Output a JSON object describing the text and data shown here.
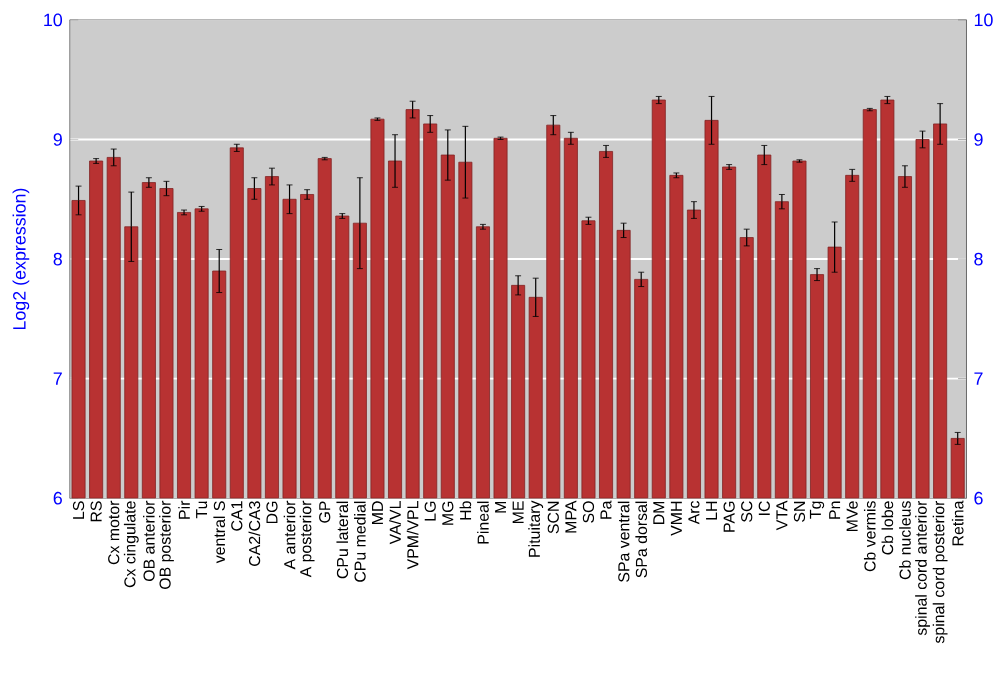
{
  "chart_data": {
    "type": "bar",
    "ylabel": "Log2 (expression)",
    "categories": [
      "LS",
      "RS",
      "Cx motor",
      "Cx cingulate",
      "OB anterior",
      "OB posterior",
      "Pir",
      "Tu",
      "ventral S",
      "CA1",
      "CA2/CA3",
      "DG",
      "A anterior",
      "A posterior",
      "GP",
      "CPu lateral",
      "CPu medial",
      "MD",
      "VA/VL",
      "VPM/VPL",
      "LG",
      "MG",
      "Hb",
      "Pineal",
      "M",
      "ME",
      "Pituitary",
      "SCN",
      "MPA",
      "SO",
      "Pa",
      "SPa ventral",
      "SPa dorsal",
      "DM",
      "VMH",
      "Arc",
      "LH",
      "PAG",
      "SC",
      "IC",
      "VTA",
      "SN",
      "Tg",
      "Pn",
      "MVe",
      "Cb vermis",
      "Cb lobe",
      "Cb nucleus",
      "spinal cord anterior",
      "spinal cord posterior",
      "Retina"
    ],
    "values": [
      8.49,
      8.82,
      8.85,
      8.27,
      8.64,
      8.59,
      8.39,
      8.42,
      7.9,
      8.93,
      8.59,
      8.69,
      8.5,
      8.54,
      8.84,
      8.36,
      8.3,
      9.17,
      8.82,
      9.25,
      9.13,
      8.87,
      8.81,
      8.27,
      9.01,
      7.78,
      7.68,
      9.12,
      9.01,
      8.32,
      8.9,
      8.24,
      7.83,
      9.33,
      8.7,
      8.41,
      9.16,
      8.77,
      8.18,
      8.87,
      8.48,
      8.82,
      7.87,
      8.1,
      8.7,
      9.25,
      9.33,
      8.69,
      9.0,
      9.13,
      6.5
    ],
    "errors": [
      0.12,
      0.02,
      0.07,
      0.29,
      0.04,
      0.06,
      0.02,
      0.02,
      0.18,
      0.03,
      0.09,
      0.07,
      0.12,
      0.04,
      0.01,
      0.02,
      0.38,
      0.01,
      0.22,
      0.07,
      0.07,
      0.21,
      0.3,
      0.02,
      0.01,
      0.08,
      0.16,
      0.08,
      0.05,
      0.03,
      0.05,
      0.06,
      0.06,
      0.03,
      0.02,
      0.07,
      0.2,
      0.02,
      0.07,
      0.08,
      0.06,
      0.01,
      0.05,
      0.21,
      0.05,
      0.01,
      0.03,
      0.09,
      0.07,
      0.17,
      0.05
    ],
    "color": "#b83232",
    "ylim": [
      6,
      10
    ],
    "yticks": [
      6,
      7,
      8,
      9,
      10
    ],
    "y2lim": [
      6,
      10
    ],
    "y2ticks": [
      6,
      7,
      8,
      9,
      10
    ],
    "grid": "y"
  }
}
